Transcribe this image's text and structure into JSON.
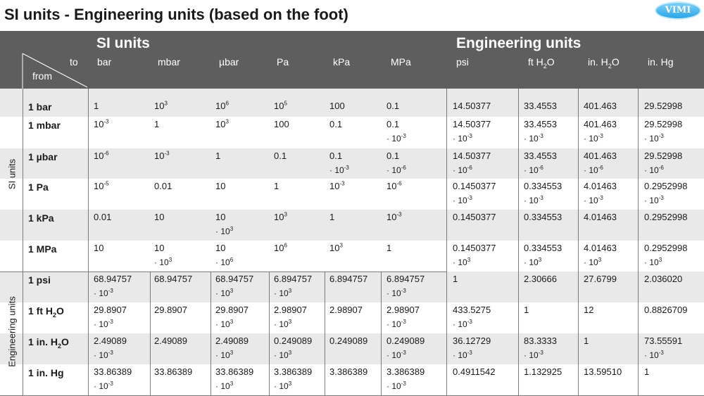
{
  "title": "SI units - Engineering units (based on the foot)",
  "logo": "VIMI",
  "header": {
    "si_group": "SI units",
    "eng_group": "Engineering units",
    "to_label": "to",
    "from_label": "from",
    "columns": [
      {
        "label": "bar"
      },
      {
        "label": "mbar"
      },
      {
        "label": "µbar"
      },
      {
        "label": "Pa"
      },
      {
        "label": "kPa"
      },
      {
        "label": "MPa"
      },
      {
        "label": "psi"
      },
      {
        "label": "ft H",
        "sub": "2",
        "suffix": "O"
      },
      {
        "label": "in. H",
        "sub": "2",
        "suffix": "O"
      },
      {
        "label": "in. Hg"
      }
    ]
  },
  "side_labels": {
    "si": "SI units",
    "eng": "Engineering units"
  },
  "rows": [
    {
      "label": "1 bar",
      "cells": [
        {
          "t": "1"
        },
        {
          "t": "10",
          "sup": "3"
        },
        {
          "t": "10",
          "sup": "6"
        },
        {
          "t": "10",
          "sup": "5"
        },
        {
          "t": "100"
        },
        {
          "t": "0.1"
        },
        {
          "t": "14.50377"
        },
        {
          "t": "33.4553"
        },
        {
          "t": "401.463"
        },
        {
          "t": "29.52998"
        }
      ]
    },
    {
      "label": "1 mbar",
      "cells": [
        {
          "t": "10",
          "sup": "-3"
        },
        {
          "t": "1"
        },
        {
          "t": "10",
          "sup": "3"
        },
        {
          "t": "100"
        },
        {
          "t": "0.1"
        },
        {
          "t": "0.1",
          "e": "-3"
        },
        {
          "t": "14.50377",
          "e": "-3"
        },
        {
          "t": "33.4553",
          "e": "-3"
        },
        {
          "t": "401.463",
          "e": "-3"
        },
        {
          "t": "29.52998",
          "e": "-3"
        }
      ]
    },
    {
      "label": "1 µbar",
      "cells": [
        {
          "t": "10",
          "sup": "-6"
        },
        {
          "t": "10",
          "sup": "-3"
        },
        {
          "t": "1"
        },
        {
          "t": "0.1"
        },
        {
          "t": "0.1",
          "e": "-3"
        },
        {
          "t": "0.1",
          "e": "-6"
        },
        {
          "t": "14.50377",
          "e": "-6"
        },
        {
          "t": "33.4553",
          "e": "-6"
        },
        {
          "t": "401.463",
          "e": "-6"
        },
        {
          "t": "29.52998",
          "e": "-6"
        }
      ]
    },
    {
      "label": "1 Pa",
      "cells": [
        {
          "t": "10",
          "sup": "-5"
        },
        {
          "t": "0.01"
        },
        {
          "t": "10"
        },
        {
          "t": "1"
        },
        {
          "t": "10",
          "sup": "-3"
        },
        {
          "t": "10",
          "sup": "-6"
        },
        {
          "t": "0.1450377",
          "e": "-3"
        },
        {
          "t": "0.334553",
          "e": "-3"
        },
        {
          "t": "4.01463",
          "e": "-3"
        },
        {
          "t": "0.2952998",
          "e": "-3"
        }
      ]
    },
    {
      "label": "1 kPa",
      "cells": [
        {
          "t": "0.01"
        },
        {
          "t": "10"
        },
        {
          "t": "10",
          "e": "3"
        },
        {
          "t": "10",
          "sup": "3"
        },
        {
          "t": "1"
        },
        {
          "t": "10",
          "sup": "-3"
        },
        {
          "t": "0.1450377"
        },
        {
          "t": "0.334553"
        },
        {
          "t": "4.01463"
        },
        {
          "t": "0.2952998"
        }
      ]
    },
    {
      "label": "1 MPa",
      "cells": [
        {
          "t": "10"
        },
        {
          "t": "10",
          "e": "3"
        },
        {
          "t": "10",
          "e": "6"
        },
        {
          "t": "10",
          "sup": "6"
        },
        {
          "t": "10",
          "sup": "3"
        },
        {
          "t": "1"
        },
        {
          "t": "0.1450377",
          "e": "3"
        },
        {
          "t": "0.334553",
          "e": "3"
        },
        {
          "t": "4.01463",
          "e": "3"
        },
        {
          "t": "0.2952998",
          "e": "3"
        }
      ]
    },
    {
      "label": "1 psi",
      "cells": [
        {
          "t": "68.94757",
          "e": "-3"
        },
        {
          "t": "68.94757"
        },
        {
          "t": "68.94757",
          "e": "3"
        },
        {
          "t": "6.894757",
          "e": "3"
        },
        {
          "t": "6.894757"
        },
        {
          "t": "6.894757",
          "e": "-3"
        },
        {
          "t": "1"
        },
        {
          "t": "2.30666"
        },
        {
          "t": "27.6799"
        },
        {
          "t": "2.036020"
        }
      ]
    },
    {
      "label": "1 ft H",
      "sub": "2",
      "suffix": "O",
      "cells": [
        {
          "t": "29.8907",
          "e": "-3"
        },
        {
          "t": "29.8907"
        },
        {
          "t": "29.8907",
          "e": "3"
        },
        {
          "t": "2.98907",
          "e": "3"
        },
        {
          "t": "2.98907"
        },
        {
          "t": "2.98907",
          "e": "-3"
        },
        {
          "t": "433.5275",
          "e": "-3"
        },
        {
          "t": "1"
        },
        {
          "t": "12"
        },
        {
          "t": "0.8826709"
        }
      ]
    },
    {
      "label": "1 in. H",
      "sub": "2",
      "suffix": "O",
      "cells": [
        {
          "t": "2.49089",
          "e": "-3"
        },
        {
          "t": "2.49089"
        },
        {
          "t": "2.49089",
          "e": "3"
        },
        {
          "t": "0.249089",
          "e": "3"
        },
        {
          "t": "0.249089"
        },
        {
          "t": "0.249089",
          "e": "-3"
        },
        {
          "t": "36.12729",
          "e": "-3"
        },
        {
          "t": "83.3333",
          "e": "-3"
        },
        {
          "t": "1"
        },
        {
          "t": "73.55591",
          "e": "-3"
        }
      ]
    },
    {
      "label": "1 in. Hg",
      "cells": [
        {
          "t": "33.86389",
          "e": "-3"
        },
        {
          "t": "33.86389"
        },
        {
          "t": "33.86389",
          "e": "3"
        },
        {
          "t": "3.386389",
          "e": "3"
        },
        {
          "t": "3.386389"
        },
        {
          "t": "3.386389",
          "e": "-3"
        },
        {
          "t": "0.4911542"
        },
        {
          "t": "1.132925"
        },
        {
          "t": "13.59510"
        },
        {
          "t": "1"
        }
      ]
    }
  ]
}
